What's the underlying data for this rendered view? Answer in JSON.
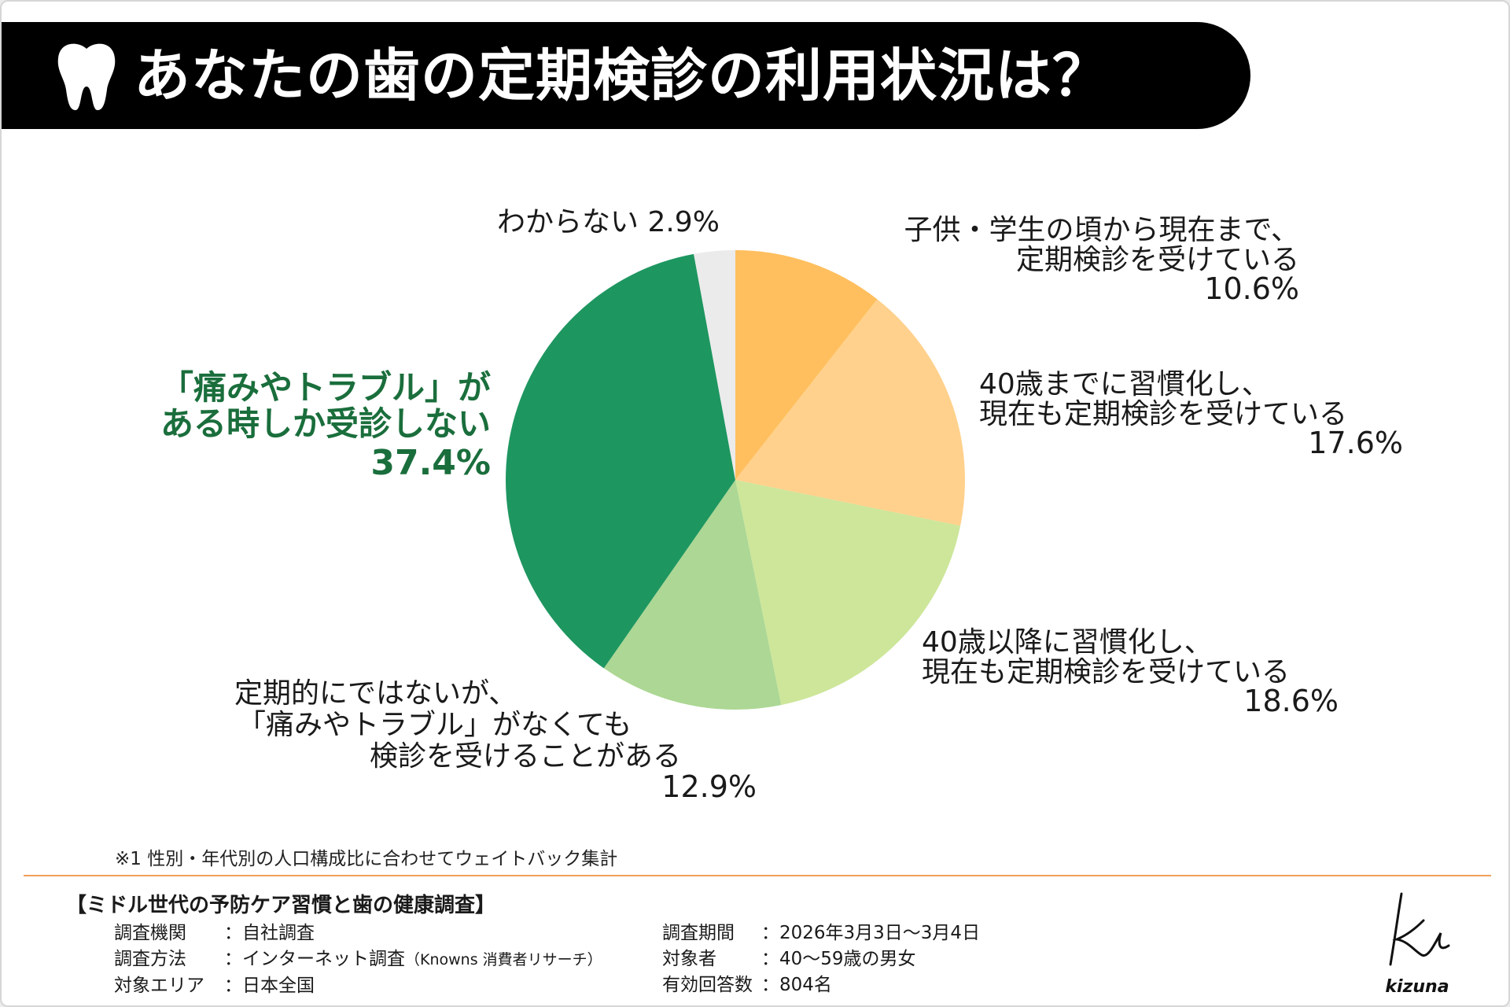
{
  "header": {
    "title": "あなたの歯の定期検診の利用状況は？"
  },
  "colors": {
    "title_bar": "#000000",
    "emphasis_label": "#1a6e3c",
    "divider": "#f0a05a"
  },
  "chart_data": {
    "type": "pie",
    "start_angle_deg": 0,
    "direction": "clockwise",
    "slices": [
      {
        "value": 10.6,
        "color": "#ffbf5e",
        "label_lines": [
          "子供・学生の頃から現在まで、",
          "定期検診を受けている"
        ],
        "value_label": "10.6%"
      },
      {
        "value": 17.6,
        "color": "#ffd18c",
        "label_lines": [
          "40歳までに習慣化し、",
          "現在も定期検診を受けている"
        ],
        "value_label": "17.6%"
      },
      {
        "value": 18.6,
        "color": "#cde69a",
        "label_lines": [
          "40歳以降に習慣化し、",
          "現在も定期検診を受けている"
        ],
        "value_label": "18.6%"
      },
      {
        "value": 12.9,
        "color": "#acd794",
        "label_lines": [
          "定期的にではないが、",
          "「痛みやトラブル」がなくても",
          "検診を受けることがある"
        ],
        "value_label": "12.9%"
      },
      {
        "value": 37.4,
        "color": "#1e9660",
        "label_lines": [
          "「痛みやトラブル」が",
          "ある時しか受診しない"
        ],
        "value_label": "37.4%",
        "emphasis": true
      },
      {
        "value": 2.9,
        "color": "#ebebeb",
        "label_lines": [
          "わからない 2.9%"
        ],
        "value_label": ""
      }
    ]
  },
  "footnote": "※1 性別・年代別の人口構成比に合わせてウェイトバック集計",
  "survey": {
    "title": "【ミドル世代の予防ケア習慣と歯の健康調査】",
    "left": [
      {
        "key": "調査機関",
        "value": "：自社調査"
      },
      {
        "key": "調査方法",
        "value": "：インターネット調査",
        "note": "（Knowns 消費者リサーチ）"
      },
      {
        "key": "対象エリア",
        "value": "：日本全国"
      }
    ],
    "right": [
      {
        "key": "調査期間",
        "value": "：2026年3月3日～3月4日"
      },
      {
        "key": "対象者",
        "value": "：40～59歳の男女"
      },
      {
        "key": "有効回答数",
        "value": "：804名"
      }
    ]
  },
  "brand": {
    "logo_text": "kizuna",
    "logo_icon": "kizuna-signature-icon"
  }
}
